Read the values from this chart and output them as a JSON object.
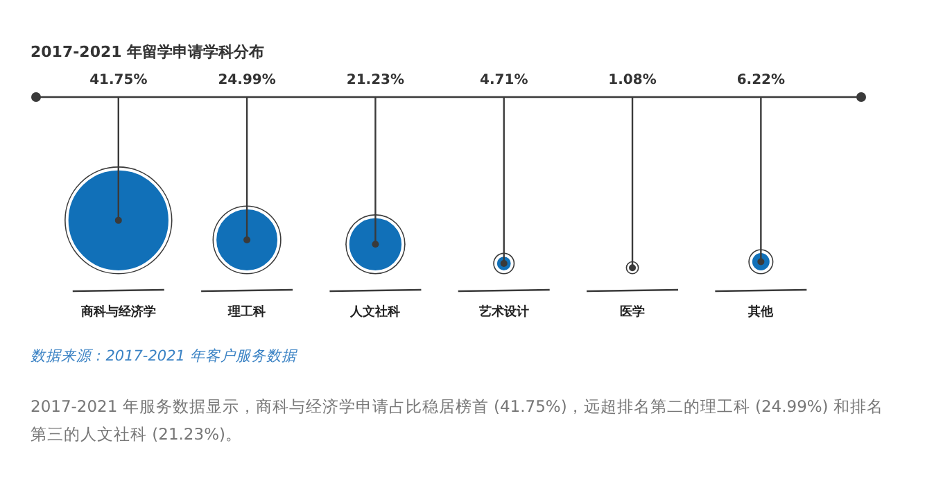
{
  "chart_data": {
    "type": "other",
    "title": "2017-2021 年留学申请学科分布",
    "categories": [
      "商科与经济学",
      "理工科",
      "人文社科",
      "艺术设计",
      "医学",
      "其他"
    ],
    "values": [
      41.75,
      24.99,
      21.23,
      4.71,
      1.08,
      6.22
    ],
    "value_labels": [
      "41.75%",
      "24.99%",
      "21.23%",
      "4.71%",
      "1.08%",
      "6.22%"
    ],
    "color": "#1170b8",
    "annotations": [
      "数据来源 : 2017-2021 年客户服务数据",
      "2017-2021 年服务数据显示，商科与经济学申请占比稳居榜首 (41.75%)，远超排名第二的理工科 (24.99%) 和排名第三的人文社科 (21.23%)。"
    ]
  }
}
